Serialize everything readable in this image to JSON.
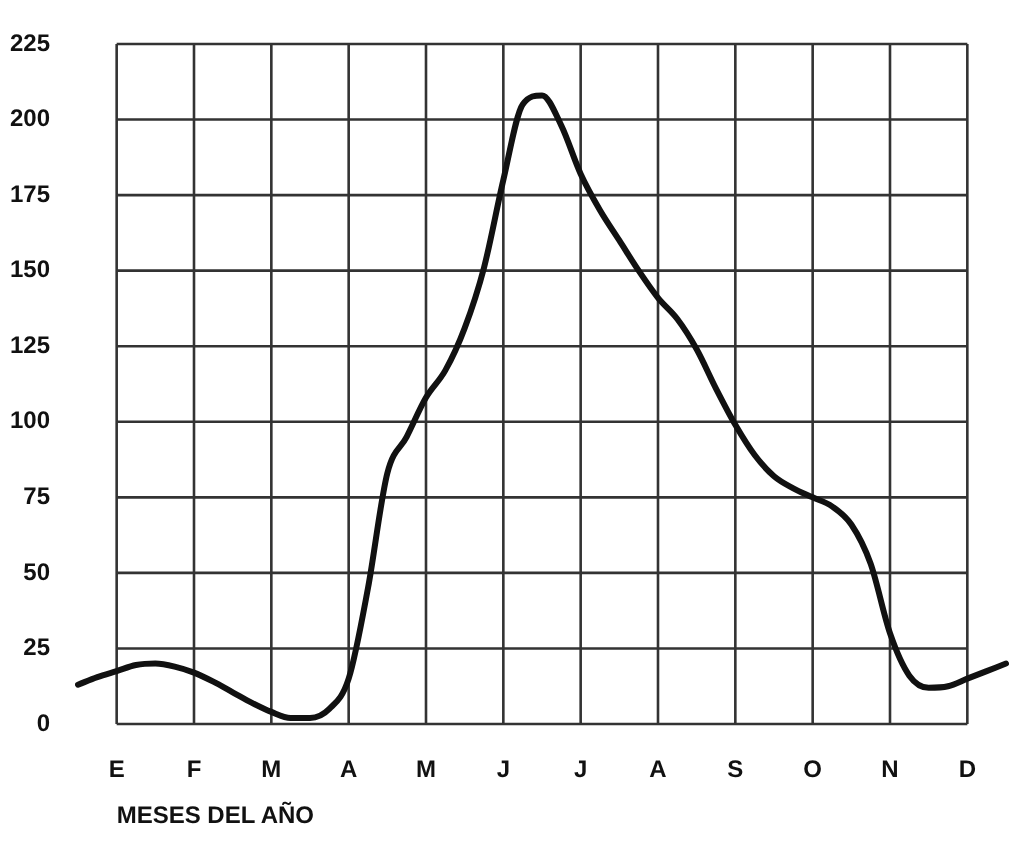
{
  "chart_data": {
    "type": "line",
    "xlabel": "MESES DEL AÑO",
    "categories": [
      null,
      null,
      "E",
      null,
      null,
      null,
      "F",
      null,
      null,
      null,
      "M",
      null,
      null,
      null,
      "A",
      null,
      null,
      null,
      "M",
      null,
      null,
      null,
      "J",
      null,
      null,
      null,
      "J",
      null,
      null,
      null,
      "A",
      null,
      null,
      null,
      "S",
      null,
      null,
      null,
      "O",
      null,
      null,
      null,
      "N",
      null,
      null,
      null,
      "D",
      null,
      null
    ],
    "series": [
      {
        "color": "#111111",
        "values": [
          13,
          15.5,
          17.5,
          19.5,
          20,
          19,
          17,
          14,
          10.5,
          7,
          4,
          2,
          2,
          5,
          15,
          45,
          83,
          95,
          108,
          117,
          131,
          151,
          180,
          205,
          208,
          198,
          182,
          170,
          160,
          150,
          141,
          134,
          124,
          111,
          99,
          89,
          82,
          78,
          75,
          72,
          66,
          53,
          30,
          16,
          12,
          12.5,
          15,
          17.5,
          20
        ]
      }
    ],
    "ylim": [
      0,
      225
    ],
    "yticks": [
      0,
      25,
      50,
      75,
      100,
      125,
      150,
      175,
      200,
      225
    ],
    "grid": true,
    "legend": false,
    "marker": "none",
    "line_style": "solid"
  }
}
